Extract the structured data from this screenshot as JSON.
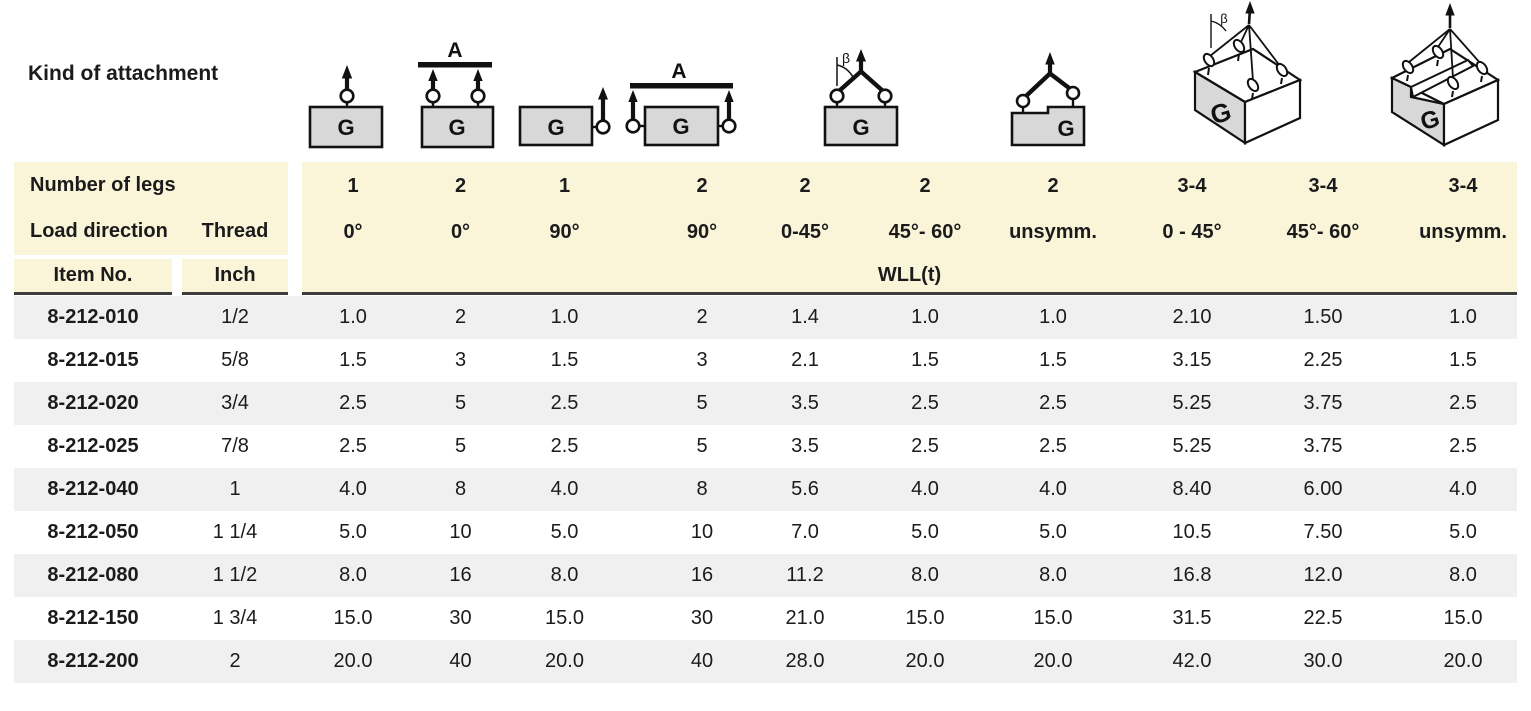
{
  "colors": {
    "header_bg": "#faf4d9",
    "row_alt_bg": "#f0f0f0",
    "rule_dark": "#3d3d3d",
    "text": "#1b1b1b",
    "diagram_box_fill": "#d8d8d8"
  },
  "attachment_header": {
    "label": "Kind of attachment",
    "diagrams": [
      {
        "name": "single-leg-0deg",
        "g_label": "G"
      },
      {
        "name": "two-leg-0deg-beam",
        "g_label": "G",
        "beam_label": "A"
      },
      {
        "name": "single-leg-90deg",
        "g_label": "G"
      },
      {
        "name": "two-leg-90deg-beam",
        "g_label": "G",
        "beam_label": "A"
      },
      {
        "name": "two-leg-angle",
        "g_label": "G",
        "angle_label": "β"
      },
      {
        "name": "two-leg-unsymmetric",
        "g_label": "G"
      },
      {
        "name": "multi-leg-angle-3d",
        "g_label": "G",
        "angle_label": "β"
      },
      {
        "name": "multi-leg-unsymmetric-3d",
        "g_label": "G"
      }
    ]
  },
  "table": {
    "header": {
      "number_of_legs_label": "Number of legs",
      "load_direction_label": "Load direction",
      "thread_label": "Thread",
      "item_no_label": "Item No.",
      "inch_label": "Inch",
      "wll_label": "WLL(t)",
      "legs": [
        "1",
        "2",
        "1",
        "2",
        "2",
        "2",
        "2",
        "3-4",
        "3-4",
        "3-4"
      ],
      "directions": [
        "0°",
        "0°",
        "90°",
        "90°",
        "0-45°",
        "45°- 60°",
        "unsymm.",
        "0 - 45°",
        "45°- 60°",
        "unsymm."
      ]
    },
    "rows": [
      {
        "item": "8-212-010",
        "inch": "1/2",
        "wll": [
          "1.0",
          "2",
          "1.0",
          "2",
          "1.4",
          "1.0",
          "1.0",
          "2.10",
          "1.50",
          "1.0"
        ]
      },
      {
        "item": "8-212-015",
        "inch": "5/8",
        "wll": [
          "1.5",
          "3",
          "1.5",
          "3",
          "2.1",
          "1.5",
          "1.5",
          "3.15",
          "2.25",
          "1.5"
        ]
      },
      {
        "item": "8-212-020",
        "inch": "3/4",
        "wll": [
          "2.5",
          "5",
          "2.5",
          "5",
          "3.5",
          "2.5",
          "2.5",
          "5.25",
          "3.75",
          "2.5"
        ]
      },
      {
        "item": "8-212-025",
        "inch": "7/8",
        "wll": [
          "2.5",
          "5",
          "2.5",
          "5",
          "3.5",
          "2.5",
          "2.5",
          "5.25",
          "3.75",
          "2.5"
        ]
      },
      {
        "item": "8-212-040",
        "inch": "1",
        "wll": [
          "4.0",
          "8",
          "4.0",
          "8",
          "5.6",
          "4.0",
          "4.0",
          "8.40",
          "6.00",
          "4.0"
        ]
      },
      {
        "item": "8-212-050",
        "inch": "1 1/4",
        "wll": [
          "5.0",
          "10",
          "5.0",
          "10",
          "7.0",
          "5.0",
          "5.0",
          "10.5",
          "7.50",
          "5.0"
        ]
      },
      {
        "item": "8-212-080",
        "inch": "1 1/2",
        "wll": [
          "8.0",
          "16",
          "8.0",
          "16",
          "11.2",
          "8.0",
          "8.0",
          "16.8",
          "12.0",
          "8.0"
        ]
      },
      {
        "item": "8-212-150",
        "inch": "1 3/4",
        "wll": [
          "15.0",
          "30",
          "15.0",
          "30",
          "21.0",
          "15.0",
          "15.0",
          "31.5",
          "22.5",
          "15.0"
        ]
      },
      {
        "item": "8-212-200",
        "inch": "2",
        "wll": [
          "20.0",
          "40",
          "20.0",
          "40",
          "28.0",
          "20.0",
          "20.0",
          "42.0",
          "30.0",
          "20.0"
        ]
      }
    ]
  }
}
